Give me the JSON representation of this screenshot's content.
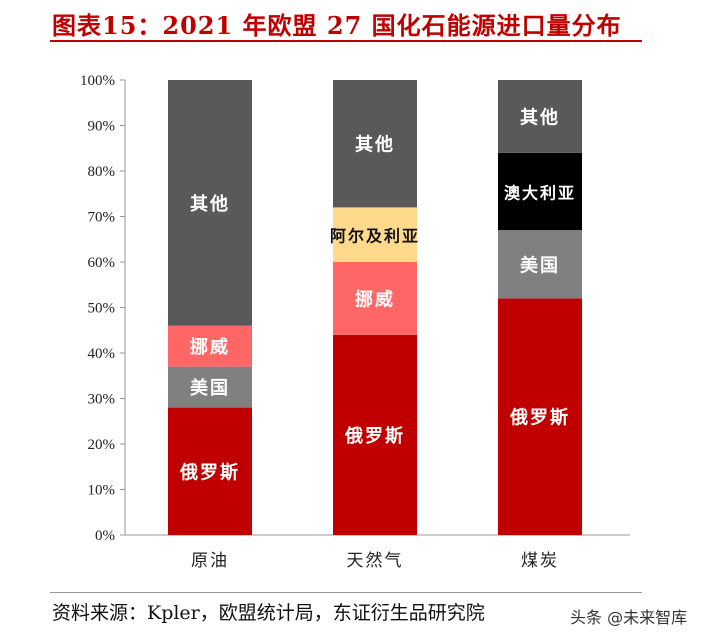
{
  "title": "图表15：2021 年欧盟 27 国化石能源进口量分布",
  "chart_data": {
    "type": "bar",
    "stacked": true,
    "title": "",
    "xlabel": "",
    "ylabel": "",
    "ylim": [
      0,
      100
    ],
    "yticks": [
      "0%",
      "10%",
      "20%",
      "30%",
      "40%",
      "50%",
      "60%",
      "70%",
      "80%",
      "90%",
      "100%"
    ],
    "categories": [
      "原油",
      "天然气",
      "煤炭"
    ],
    "bars": [
      {
        "category": "原油",
        "segments": [
          {
            "label": "俄罗斯",
            "value": 28,
            "color": "#c00000",
            "text_color": "#ffffff"
          },
          {
            "label": "美国",
            "value": 9,
            "color": "#808080",
            "text_color": "#ffffff"
          },
          {
            "label": "挪威",
            "value": 9,
            "color": "#ff6666",
            "text_color": "#ffffff"
          },
          {
            "label": "其他",
            "value": 54,
            "color": "#595959",
            "text_color": "#ffffff"
          }
        ]
      },
      {
        "category": "天然气",
        "segments": [
          {
            "label": "俄罗斯",
            "value": 44,
            "color": "#c00000",
            "text_color": "#ffffff"
          },
          {
            "label": "挪威",
            "value": 16,
            "color": "#ff6666",
            "text_color": "#ffffff"
          },
          {
            "label": "阿尔及利亚",
            "value": 12,
            "color": "#ffd98c",
            "text_color": "#111111"
          },
          {
            "label": "其他",
            "value": 28,
            "color": "#595959",
            "text_color": "#ffffff"
          }
        ]
      },
      {
        "category": "煤炭",
        "segments": [
          {
            "label": "俄罗斯",
            "value": 52,
            "color": "#c00000",
            "text_color": "#ffffff"
          },
          {
            "label": "美国",
            "value": 15,
            "color": "#808080",
            "text_color": "#ffffff"
          },
          {
            "label": "澳大利亚",
            "value": 17,
            "color": "#000000",
            "text_color": "#ffffff"
          },
          {
            "label": "其他",
            "value": 16,
            "color": "#595959",
            "text_color": "#ffffff"
          }
        ]
      }
    ],
    "grid": false,
    "legend": "none"
  },
  "source": "资料来源：Kpler，欧盟统计局，东证衍生品研究院",
  "watermark": "头条 @未来智库"
}
